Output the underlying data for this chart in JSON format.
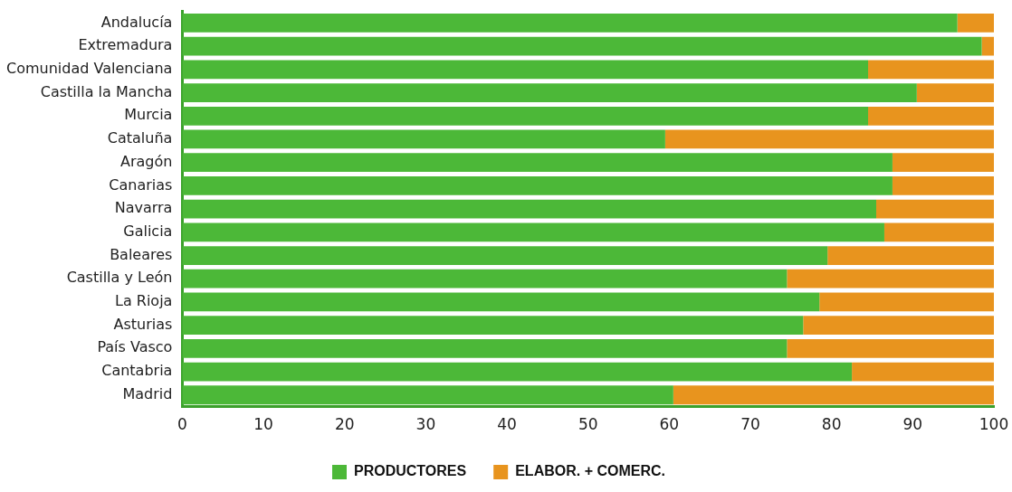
{
  "chart_data": {
    "type": "bar",
    "orientation": "horizontal",
    "stacked": true,
    "categories": [
      "Andalucía",
      "Extremadura",
      "Comunidad Valenciana",
      "Castilla la Mancha",
      "Murcia",
      "Cataluña",
      "Aragón",
      "Canarias",
      "Navarra",
      "Galicia",
      "Baleares",
      "Castilla y León",
      "La Rioja",
      "Asturias",
      "País Vasco",
      "Cantabria",
      "Madrid"
    ],
    "series": [
      {
        "name": "PRODUCTORES",
        "color": "#4cb838",
        "values": [
          95.5,
          98.5,
          84.5,
          90.5,
          84.5,
          59.5,
          87.5,
          87.5,
          85.5,
          86.5,
          79.5,
          74.5,
          78.5,
          76.5,
          74.5,
          82.5,
          60.5
        ]
      },
      {
        "name": "ELABOR. + COMERC.",
        "color": "#e8941e",
        "values": [
          4.5,
          1.5,
          15.5,
          9.5,
          15.5,
          40.5,
          12.5,
          12.5,
          14.5,
          13.5,
          20.5,
          25.5,
          21.5,
          23.5,
          25.5,
          17.5,
          39.5
        ]
      }
    ],
    "xlim": [
      0,
      100
    ],
    "xticks": [
      0,
      10,
      20,
      30,
      40,
      50,
      60,
      70,
      80,
      90,
      100
    ],
    "grid": false,
    "legend": "bottom"
  }
}
